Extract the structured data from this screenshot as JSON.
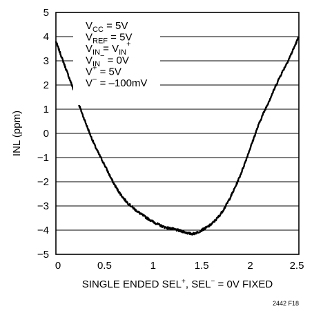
{
  "chart_data": {
    "type": "line",
    "title": "",
    "ylabel": "INL (ppm)",
    "xlabel": {
      "prefix": "SINGLE ENDED SEL",
      "sup1": "+",
      "middle": ", SEL",
      "sup2": "−",
      "suffix": " = 0V FIXED"
    },
    "xlim": [
      0,
      2.5
    ],
    "ylim": [
      -5,
      5
    ],
    "xticks": [
      0,
      0.5,
      1,
      1.5,
      2,
      2.5
    ],
    "xtick_labels": [
      "0",
      "0.5",
      "1",
      "1.5",
      "2",
      "2.5"
    ],
    "yticks": [
      -5,
      -4,
      -3,
      -2,
      -1,
      0,
      1,
      2,
      3,
      4,
      5
    ],
    "ytick_labels": [
      "−5",
      "−4",
      "−3",
      "−2",
      "−1",
      "0",
      "1",
      "2",
      "3",
      "4",
      "5"
    ],
    "grid": "horizontal",
    "series": [
      {
        "color": "#000000",
        "x": [
          0,
          0.1,
          0.2,
          0.3,
          0.4,
          0.5,
          0.6,
          0.7,
          0.8,
          0.9,
          1.0,
          1.1,
          1.2,
          1.3,
          1.4,
          1.45,
          1.5,
          1.6,
          1.7,
          1.8,
          1.9,
          2.0,
          2.1,
          2.2,
          2.3,
          2.4,
          2.5
        ],
        "y": [
          3.8,
          2.7,
          1.6,
          0.5,
          -0.5,
          -1.3,
          -2.1,
          -2.7,
          -3.1,
          -3.4,
          -3.65,
          -3.85,
          -3.95,
          -4.05,
          -4.15,
          -4.1,
          -4.0,
          -3.75,
          -3.3,
          -2.6,
          -1.7,
          -0.6,
          0.5,
          1.4,
          2.3,
          3.1,
          4.0
        ]
      }
    ],
    "annotations": [
      {
        "base": "V",
        "sub": "CC",
        "rest": " = 5V"
      },
      {
        "base": "V",
        "sub": "REF",
        "rest": " = 5V"
      },
      {
        "base": "V",
        "sub": "IN",
        "rest": " = V",
        "sub2": "IN",
        "sup2": "+"
      },
      {
        "base": "V",
        "sub": "IN",
        "sup": "−",
        "rest": " = 0V"
      },
      {
        "base": "V",
        "sup": "+",
        "rest": " = 5V"
      },
      {
        "base": "V",
        "sup": "−",
        "rest": " = –100mV"
      }
    ],
    "figure_id": "2442 F18"
  }
}
